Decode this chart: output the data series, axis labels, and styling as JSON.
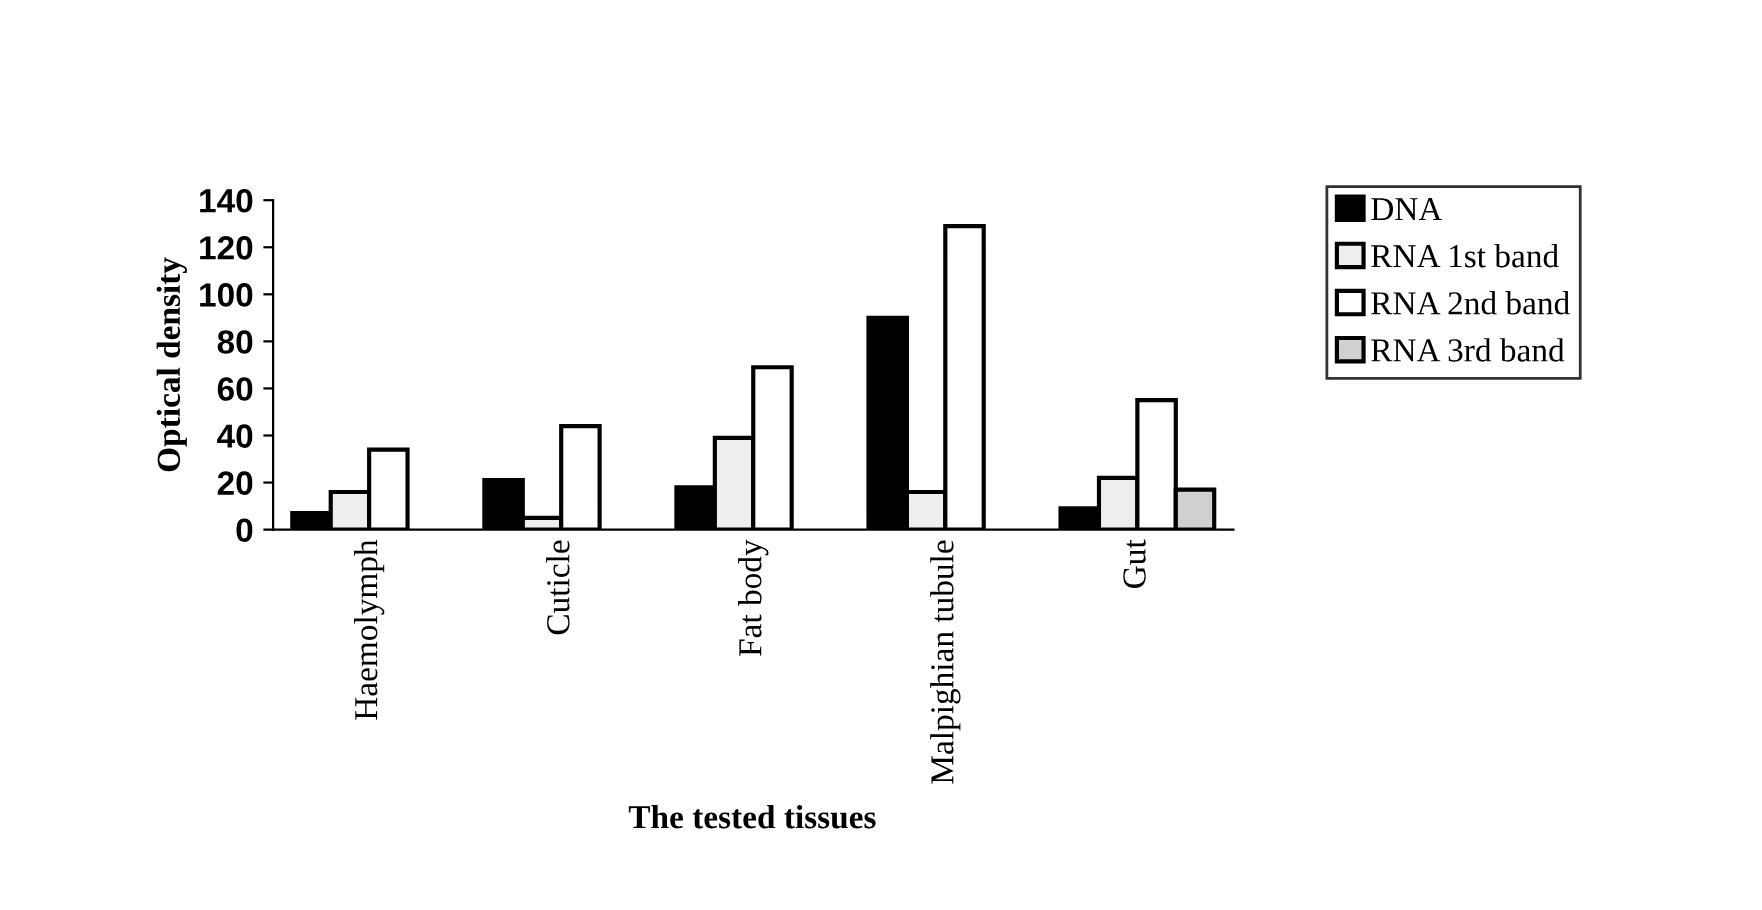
{
  "chart_data": {
    "type": "bar",
    "xlabel": "The tested tissues",
    "ylabel": "Optical density",
    "categories": [
      "Haemolymph",
      "Cuticle",
      "Fat body",
      "Malpighian tubule",
      "Gut"
    ],
    "series": [
      {
        "name": "DNA",
        "color": "#000000",
        "values": [
          7,
          21,
          18,
          90,
          9
        ]
      },
      {
        "name": "RNA 1st band",
        "color": "#eeeeee",
        "values": [
          16,
          5,
          39,
          16,
          22
        ]
      },
      {
        "name": "RNA 2nd band",
        "color": "#ffffff",
        "values": [
          34,
          44,
          69,
          129,
          55
        ]
      },
      {
        "name": "RNA 3rd band",
        "color": "#d0d0d0",
        "values": [
          null,
          null,
          null,
          null,
          17
        ]
      }
    ],
    "ylim": [
      0,
      140
    ],
    "yticks": [
      0,
      20,
      40,
      60,
      80,
      100,
      120,
      140
    ],
    "grid": false,
    "legend": "right"
  }
}
